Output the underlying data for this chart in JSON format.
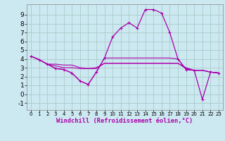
{
  "background_color": "#cce8f0",
  "grid_color": "#aacccc",
  "line_color": "#aa00aa",
  "xlim": [
    -0.5,
    23.5
  ],
  "ylim": [
    -1.8,
    10.2
  ],
  "yticks": [
    -1,
    0,
    1,
    2,
    3,
    4,
    5,
    6,
    7,
    8,
    9
  ],
  "xticks": [
    0,
    1,
    2,
    3,
    4,
    5,
    6,
    7,
    8,
    9,
    10,
    11,
    12,
    13,
    14,
    15,
    16,
    17,
    18,
    19,
    20,
    21,
    22,
    23
  ],
  "xlabel": "Windchill (Refroidissement éolien,°C)",
  "series": [
    {
      "x": [
        0,
        1,
        2,
        3,
        4,
        5,
        6,
        7,
        8,
        9,
        10,
        11,
        12,
        13,
        14,
        15,
        16,
        17,
        18,
        19,
        20,
        21,
        22,
        23
      ],
      "y": [
        4.3,
        3.9,
        3.4,
        2.9,
        2.8,
        2.4,
        1.5,
        1.1,
        2.5,
        4.1,
        6.5,
        7.5,
        8.1,
        7.5,
        9.6,
        9.6,
        9.2,
        7.0,
        4.0,
        2.8,
        2.7,
        -0.6,
        2.5,
        2.4
      ],
      "marker": true
    },
    {
      "x": [
        0,
        1,
        2,
        3,
        4,
        5,
        6,
        7,
        8,
        9,
        10,
        11,
        12,
        13,
        14,
        15,
        16,
        17,
        18,
        19,
        20,
        21,
        22,
        23
      ],
      "y": [
        4.3,
        3.9,
        3.4,
        2.9,
        2.8,
        2.4,
        1.5,
        1.1,
        2.5,
        4.1,
        4.1,
        4.1,
        4.1,
        4.1,
        4.1,
        4.1,
        4.1,
        4.1,
        4.0,
        2.8,
        2.7,
        2.7,
        2.5,
        2.4
      ],
      "marker": false
    },
    {
      "x": [
        0,
        1,
        2,
        3,
        4,
        5,
        6,
        7,
        8,
        9,
        10,
        11,
        12,
        13,
        14,
        15,
        16,
        17,
        18,
        19,
        20,
        21,
        22,
        23
      ],
      "y": [
        4.3,
        3.9,
        3.4,
        3.4,
        3.3,
        3.3,
        3.0,
        2.9,
        2.9,
        3.5,
        3.5,
        3.5,
        3.5,
        3.5,
        3.5,
        3.5,
        3.5,
        3.5,
        3.5,
        3.0,
        2.7,
        2.7,
        2.5,
        2.4
      ],
      "marker": false
    },
    {
      "x": [
        0,
        1,
        2,
        3,
        4,
        5,
        6,
        7,
        8,
        9,
        10,
        11,
        12,
        13,
        14,
        15,
        16,
        17,
        18,
        19,
        20,
        21,
        22,
        23
      ],
      "y": [
        4.3,
        3.9,
        3.4,
        3.2,
        3.0,
        3.0,
        2.9,
        2.9,
        3.0,
        3.5,
        3.5,
        3.5,
        3.5,
        3.5,
        3.5,
        3.5,
        3.5,
        3.5,
        3.5,
        2.9,
        2.7,
        2.7,
        2.5,
        2.4
      ],
      "marker": false
    }
  ]
}
